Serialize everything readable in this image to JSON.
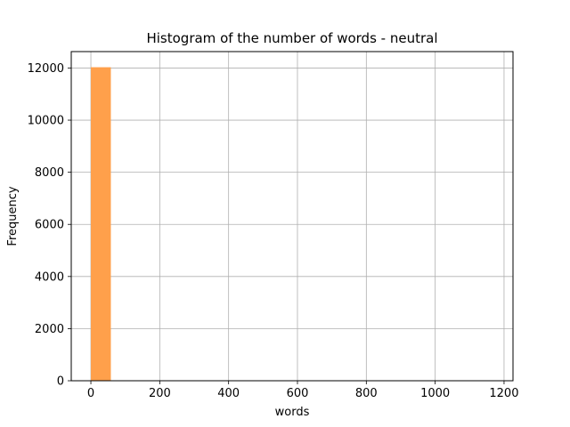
{
  "chart_data": {
    "type": "bar",
    "title": "Histogram of the number of words - neutral",
    "xlabel": "words",
    "ylabel": "Frequency",
    "xlim": [
      -57,
      1226
    ],
    "ylim": [
      0,
      12630
    ],
    "xticks": [
      0,
      200,
      400,
      600,
      800,
      1000,
      1200
    ],
    "yticks": [
      0,
      2000,
      4000,
      6000,
      8000,
      10000,
      12000
    ],
    "xtick_labels": [
      "0",
      "200",
      "400",
      "600",
      "800",
      "1000",
      "1200"
    ],
    "ytick_labels": [
      "0",
      "2000",
      "4000",
      "6000",
      "8000",
      "10000",
      "12000"
    ],
    "grid": true,
    "bar_color": "#ffa04b",
    "bins": [
      {
        "start": 0,
        "end": 58,
        "count": 12030
      }
    ]
  }
}
